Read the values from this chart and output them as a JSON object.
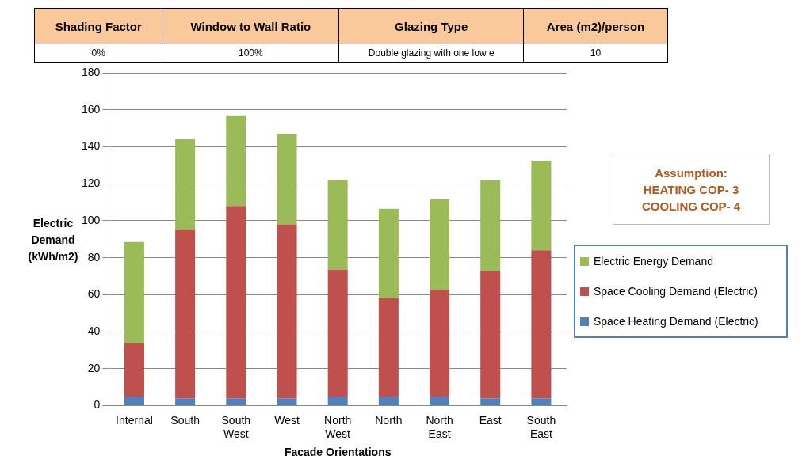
{
  "chart_data": {
    "type": "bar",
    "stacked": true,
    "categories": [
      "Internal",
      "South",
      "South West",
      "West",
      "North West",
      "North",
      "North East",
      "East",
      "South East"
    ],
    "series": [
      {
        "name": "Space Heating Demand (Electric)",
        "color": "#4f81bd",
        "values": [
          5,
          4,
          4,
          4,
          5,
          5,
          5,
          4,
          4
        ]
      },
      {
        "name": "Space Cooling Demand (Electric)",
        "color": "#c0504d",
        "values": [
          29,
          91,
          104,
          94,
          68.5,
          53,
          57.5,
          69,
          80
        ]
      },
      {
        "name": "Electric Energy Demand",
        "color": "#9bbb59",
        "values": [
          54.5,
          49,
          49,
          49,
          48.5,
          48.5,
          49,
          49,
          48.5
        ]
      }
    ],
    "xlabel": "Facade Orientations",
    "ylabel": "Electric Demand (kWh/m2)",
    "ylim": [
      0,
      180
    ],
    "yticks": [
      0,
      20,
      40,
      60,
      80,
      100,
      120,
      140,
      160,
      180
    ],
    "grid": "y",
    "legend": "right",
    "annotations": [
      "Shading Factor",
      "Window to Wall Ratio",
      "Glazing Type",
      "Area (m2)/person",
      "0%",
      "100%",
      "Double glazing with one low e",
      "10",
      "Assumption:\nHEATING COP- 3\nCOOLING COP- 4"
    ]
  }
}
